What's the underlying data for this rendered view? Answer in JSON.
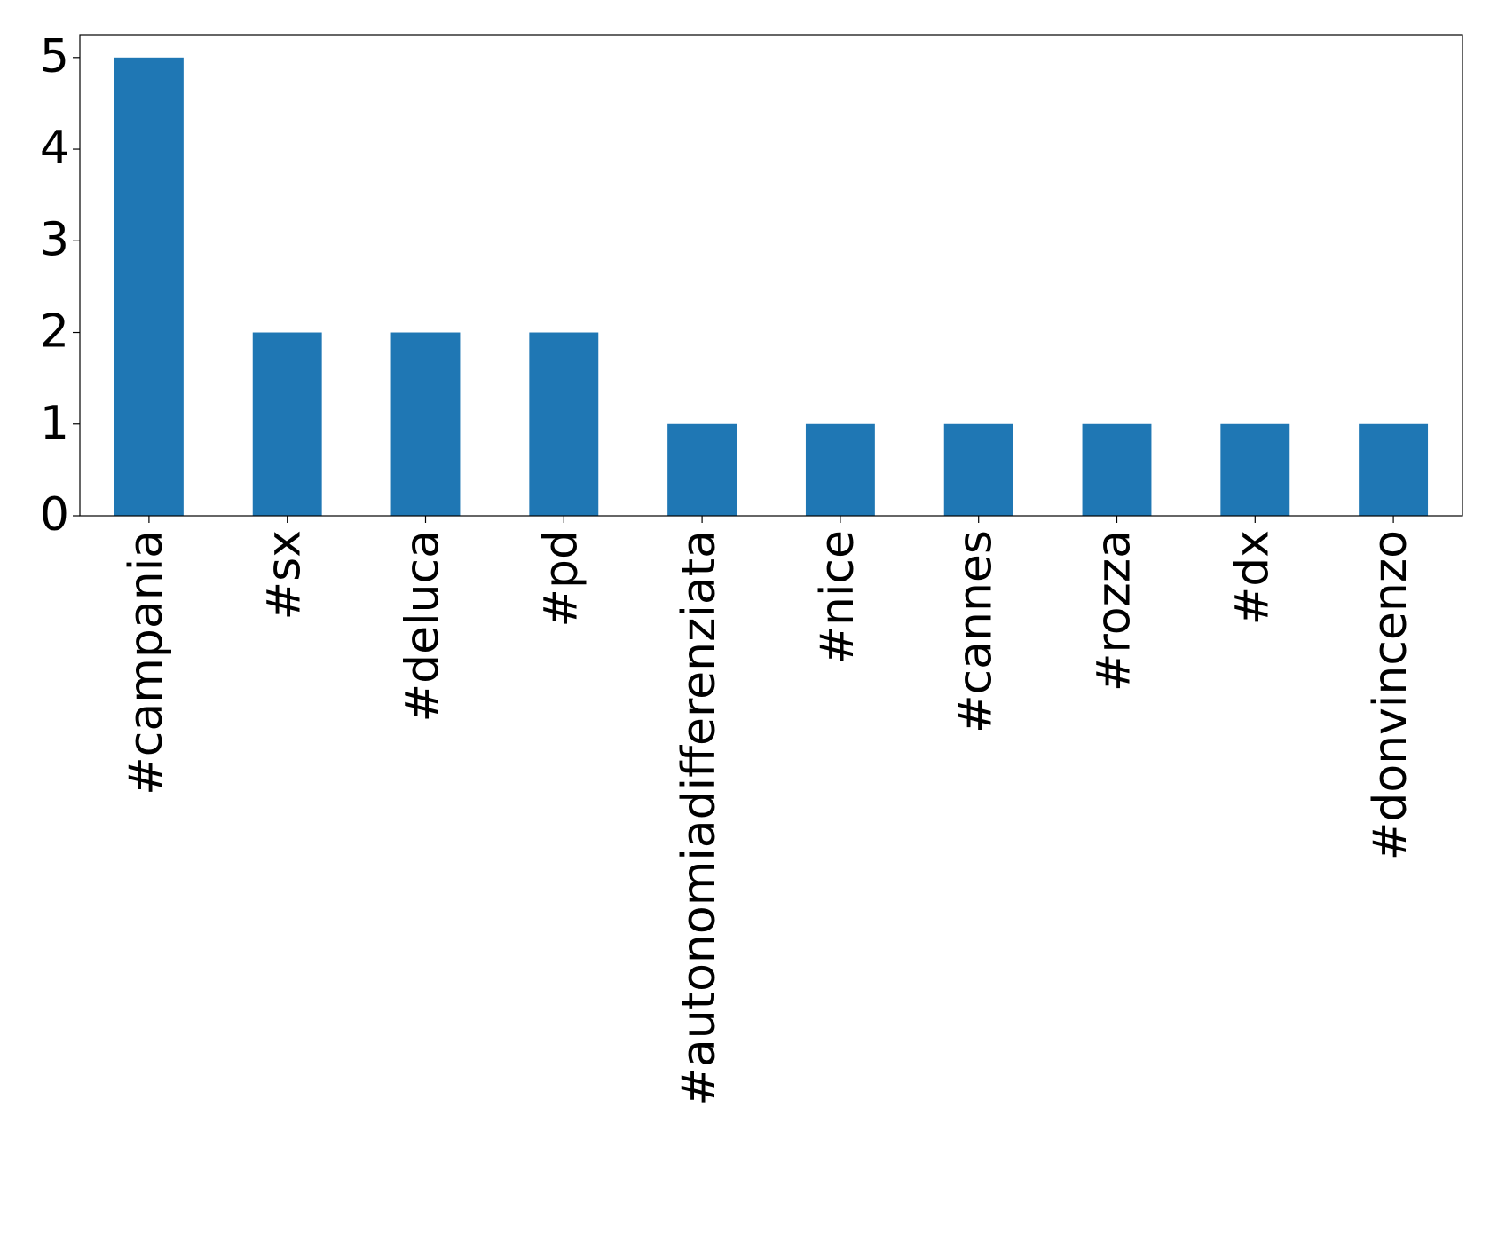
{
  "chart_data": {
    "type": "bar",
    "categories": [
      "#campania",
      "#sx",
      "#deluca",
      "#pd",
      "#autonomiadifferenziata",
      "#nice",
      "#cannes",
      "#rozza",
      "#dx",
      "#donvincenzo"
    ],
    "values": [
      5,
      2,
      2,
      2,
      1,
      1,
      1,
      1,
      1,
      1
    ],
    "color": "#1f77b4",
    "ylim": [
      0,
      5.25
    ],
    "yticks": [
      0,
      1,
      2,
      3,
      4,
      5
    ],
    "grid": false
  }
}
